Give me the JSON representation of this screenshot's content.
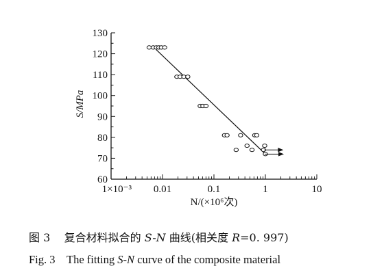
{
  "chart_data": {
    "type": "scatter",
    "xlabel": "N/(×10⁶次)",
    "ylabel": "S/MPa",
    "x_scale": "log",
    "xlim": [
      0.001,
      10
    ],
    "ylim": [
      60,
      130
    ],
    "x_ticks": [
      {
        "value": 0.001,
        "label": "1×10⁻³"
      },
      {
        "value": 0.01,
        "label": "0.01"
      },
      {
        "value": 0.1,
        "label": "0.1"
      },
      {
        "value": 1,
        "label": "1"
      },
      {
        "value": 10,
        "label": "10"
      }
    ],
    "y_ticks": [
      60,
      70,
      80,
      90,
      100,
      110,
      120,
      130
    ],
    "series": [
      {
        "x": [
          0.0055,
          0.0066,
          0.0076,
          0.0085,
          0.0095,
          0.011,
          0.019,
          0.022,
          0.026,
          0.031,
          0.054,
          0.061,
          0.07,
          0.16,
          0.18,
          0.27,
          0.33,
          0.44,
          0.55,
          0.62,
          0.68,
          0.92,
          0.97,
          1.0
        ],
        "y": [
          123,
          123,
          123,
          123,
          123,
          123,
          109,
          109,
          109,
          109,
          95,
          95,
          95,
          81,
          81,
          74,
          81,
          76,
          74,
          81,
          81,
          74,
          76,
          72
        ]
      }
    ],
    "fit_line": {
      "x": [
        0.0075,
        1.0
      ],
      "y": [
        122,
        72
      ]
    },
    "runouts": [
      {
        "x": 0.95,
        "y": 74
      },
      {
        "x": 0.97,
        "y": 72
      }
    ]
  },
  "caption_cn": {
    "number": "图 3",
    "text_before": "复合材料拟合的 ",
    "sn": "S-N",
    "text_after": " 曲线(相关度 ",
    "r": "R",
    "r_value": "=0. 997)"
  },
  "caption_en": {
    "number": "Fig. 3",
    "text_before": "The fitting ",
    "sn": "S-N",
    "text_after": " curve of the composite material"
  }
}
